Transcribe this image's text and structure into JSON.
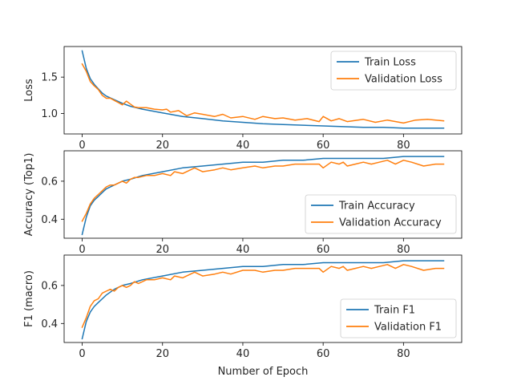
{
  "colors": {
    "train": "#1f77b4",
    "validation": "#ff7f0e"
  },
  "figure": {
    "xlabel": "Number of Epoch"
  },
  "chart_data": [
    {
      "type": "line",
      "ylabel": "Loss",
      "xlim": [
        -4.5,
        94.5
      ],
      "ylim": [
        0.72,
        1.92
      ],
      "xticks": [
        0,
        20,
        40,
        60,
        80
      ],
      "yticks": [
        1.0,
        1.5
      ],
      "ytick_labels": [
        "1.0",
        "1.5"
      ],
      "legend_position": "upper-right",
      "series": [
        {
          "name": "Train Loss",
          "color_key": "train",
          "x": [
            0,
            1,
            2,
            3,
            4,
            5,
            6,
            8,
            10,
            12,
            15,
            20,
            25,
            30,
            35,
            40,
            45,
            50,
            55,
            60,
            65,
            70,
            75,
            80,
            85,
            90
          ],
          "y": [
            1.86,
            1.62,
            1.48,
            1.4,
            1.34,
            1.28,
            1.24,
            1.19,
            1.14,
            1.1,
            1.06,
            1.01,
            0.96,
            0.93,
            0.9,
            0.88,
            0.86,
            0.85,
            0.84,
            0.83,
            0.82,
            0.81,
            0.81,
            0.8,
            0.8,
            0.8
          ]
        },
        {
          "name": "Validation Loss",
          "color_key": "validation",
          "x": [
            0,
            1,
            2,
            3,
            4,
            5,
            6,
            7,
            8,
            9,
            10,
            11,
            12,
            13,
            14,
            16,
            18,
            20,
            21,
            22,
            24,
            26,
            28,
            30,
            33,
            35,
            37,
            40,
            43,
            45,
            48,
            50,
            53,
            56,
            59,
            60,
            62,
            64,
            66,
            70,
            73,
            76,
            80,
            83,
            86,
            90
          ],
          "y": [
            1.68,
            1.58,
            1.44,
            1.38,
            1.33,
            1.25,
            1.21,
            1.21,
            1.18,
            1.15,
            1.12,
            1.17,
            1.13,
            1.09,
            1.08,
            1.08,
            1.06,
            1.05,
            1.06,
            1.02,
            1.04,
            0.97,
            1.01,
            0.99,
            0.96,
            0.99,
            0.94,
            0.96,
            0.92,
            0.96,
            0.93,
            0.94,
            0.91,
            0.93,
            0.89,
            0.96,
            0.9,
            0.93,
            0.89,
            0.92,
            0.88,
            0.91,
            0.87,
            0.91,
            0.92,
            0.9
          ]
        }
      ]
    },
    {
      "type": "line",
      "ylabel": "Accuracy (Top1)",
      "xlim": [
        -4.5,
        94.5
      ],
      "ylim": [
        0.3,
        0.76
      ],
      "xticks": [
        0,
        20,
        40,
        60,
        80
      ],
      "yticks": [
        0.4,
        0.6
      ],
      "ytick_labels": [
        "0.4",
        "0.6"
      ],
      "legend_position": "lower-right",
      "series": [
        {
          "name": "Train Accuracy",
          "color_key": "train",
          "x": [
            0,
            1,
            2,
            3,
            4,
            5,
            6,
            8,
            10,
            12,
            15,
            20,
            25,
            30,
            35,
            40,
            45,
            50,
            55,
            60,
            65,
            70,
            75,
            80,
            85,
            90
          ],
          "y": [
            0.32,
            0.41,
            0.47,
            0.5,
            0.52,
            0.54,
            0.56,
            0.58,
            0.6,
            0.61,
            0.63,
            0.65,
            0.67,
            0.68,
            0.69,
            0.7,
            0.7,
            0.71,
            0.71,
            0.72,
            0.72,
            0.72,
            0.72,
            0.73,
            0.73,
            0.73
          ]
        },
        {
          "name": "Validation Accuracy",
          "color_key": "validation",
          "x": [
            0,
            1,
            2,
            3,
            4,
            5,
            6,
            7,
            8,
            9,
            10,
            11,
            12,
            13,
            14,
            16,
            18,
            20,
            22,
            23,
            25,
            27,
            28,
            30,
            33,
            35,
            37,
            40,
            43,
            45,
            48,
            50,
            53,
            56,
            59,
            60,
            62,
            64,
            65,
            66,
            68,
            70,
            72,
            74,
            76,
            78,
            80,
            82,
            85,
            88,
            90
          ],
          "y": [
            0.39,
            0.43,
            0.48,
            0.51,
            0.53,
            0.55,
            0.57,
            0.58,
            0.58,
            0.59,
            0.6,
            0.59,
            0.61,
            0.62,
            0.62,
            0.63,
            0.63,
            0.64,
            0.63,
            0.65,
            0.64,
            0.66,
            0.67,
            0.65,
            0.66,
            0.67,
            0.66,
            0.67,
            0.68,
            0.67,
            0.68,
            0.68,
            0.69,
            0.69,
            0.69,
            0.67,
            0.7,
            0.69,
            0.7,
            0.68,
            0.69,
            0.7,
            0.69,
            0.7,
            0.71,
            0.69,
            0.71,
            0.7,
            0.68,
            0.69,
            0.69
          ]
        }
      ]
    },
    {
      "type": "line",
      "ylabel": "F1 (macro)",
      "xlim": [
        -4.5,
        94.5
      ],
      "ylim": [
        0.3,
        0.76
      ],
      "xticks": [
        0,
        20,
        40,
        60,
        80
      ],
      "yticks": [
        0.4,
        0.6
      ],
      "ytick_labels": [
        "0.4",
        "0.6"
      ],
      "legend_position": "lower-right",
      "series": [
        {
          "name": "Train F1",
          "color_key": "train",
          "x": [
            0,
            1,
            2,
            3,
            4,
            5,
            6,
            8,
            10,
            12,
            15,
            20,
            25,
            30,
            35,
            40,
            45,
            50,
            55,
            60,
            65,
            70,
            75,
            80,
            85,
            90
          ],
          "y": [
            0.32,
            0.41,
            0.46,
            0.49,
            0.51,
            0.53,
            0.55,
            0.58,
            0.6,
            0.61,
            0.63,
            0.65,
            0.67,
            0.68,
            0.69,
            0.7,
            0.7,
            0.71,
            0.71,
            0.72,
            0.72,
            0.72,
            0.72,
            0.73,
            0.73,
            0.73
          ]
        },
        {
          "name": "Validation F1",
          "color_key": "validation",
          "x": [
            0,
            1,
            2,
            3,
            4,
            5,
            6,
            7,
            8,
            9,
            10,
            11,
            12,
            13,
            14,
            16,
            18,
            20,
            22,
            23,
            25,
            27,
            28,
            30,
            33,
            35,
            37,
            40,
            43,
            45,
            48,
            50,
            53,
            56,
            59,
            60,
            62,
            64,
            65,
            66,
            68,
            70,
            72,
            74,
            76,
            78,
            80,
            82,
            85,
            88,
            90
          ],
          "y": [
            0.38,
            0.43,
            0.49,
            0.52,
            0.53,
            0.56,
            0.57,
            0.58,
            0.57,
            0.59,
            0.6,
            0.59,
            0.6,
            0.62,
            0.61,
            0.63,
            0.63,
            0.64,
            0.63,
            0.65,
            0.64,
            0.66,
            0.67,
            0.65,
            0.66,
            0.67,
            0.66,
            0.68,
            0.68,
            0.67,
            0.68,
            0.68,
            0.69,
            0.69,
            0.69,
            0.67,
            0.7,
            0.69,
            0.7,
            0.68,
            0.69,
            0.7,
            0.69,
            0.7,
            0.71,
            0.69,
            0.71,
            0.7,
            0.68,
            0.69,
            0.69
          ]
        }
      ]
    }
  ]
}
